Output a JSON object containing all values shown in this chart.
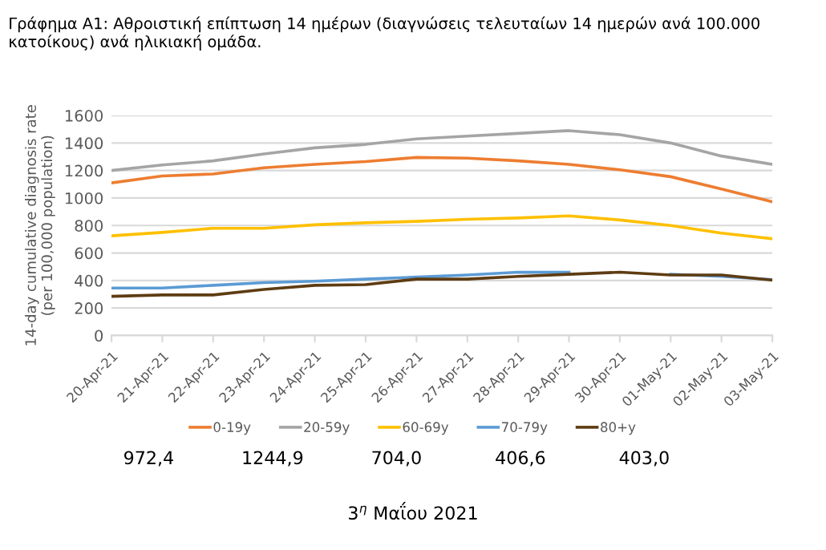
{
  "chart_data": {
    "type": "line",
    "title": "Γράφημα A1: Αθροιστική επίπτωση 14 ημέρων (διαγνώσεις τελευταίων 14 ημερών ανά 100.000 κατοίκους) ανά ηλικιακή ομάδα.",
    "ylabel": "14-day cumulative diagnosis rate\n(per 100,000 population)",
    "categories": [
      "20-Apr-21",
      "21-Apr-21",
      "22-Apr-21",
      "23-Apr-21",
      "24-Apr-21",
      "25-Apr-21",
      "26-Apr-21",
      "27-Apr-21",
      "28-Apr-21",
      "29-Apr-21",
      "30-Apr-21",
      "01-May-21",
      "02-May-21",
      "03-May-21"
    ],
    "series": [
      {
        "name": "0-19y",
        "color": "#ed7d31",
        "values": [
          1110,
          1160,
          1175,
          1220,
          1245,
          1265,
          1295,
          1290,
          1270,
          1245,
          1205,
          1155,
          1065,
          972.4
        ]
      },
      {
        "name": "20-59y",
        "color": "#a5a5a5",
        "values": [
          1200,
          1240,
          1270,
          1320,
          1365,
          1390,
          1430,
          1450,
          1470,
          1490,
          1460,
          1400,
          1305,
          1244.9
        ]
      },
      {
        "name": "60-69y",
        "color": "#ffc000",
        "values": [
          725,
          750,
          780,
          780,
          805,
          820,
          830,
          845,
          855,
          870,
          840,
          800,
          745,
          704.0
        ]
      },
      {
        "name": "70-79y",
        "color": "#5b9bd5",
        "values": [
          345,
          345,
          365,
          385,
          395,
          410,
          425,
          440,
          460,
          460,
          null,
          445,
          430,
          406.6
        ]
      },
      {
        "name": "80+y",
        "color": "#5e3c12",
        "values": [
          285,
          295,
          295,
          335,
          365,
          370,
          410,
          410,
          430,
          445,
          460,
          440,
          440,
          403.0
        ]
      }
    ],
    "ylim": [
      0,
      1600
    ],
    "yticks": [
      0,
      200,
      400,
      600,
      800,
      1000,
      1200,
      1400,
      1600
    ],
    "grid": "y",
    "legend": "bottom",
    "marker": "none",
    "line_style": "solid",
    "annotations": [
      "972,4",
      "1244,9",
      "704,0",
      "406,6",
      "403,0",
      "3$^{η}$ Μαΐου 2021"
    ]
  }
}
